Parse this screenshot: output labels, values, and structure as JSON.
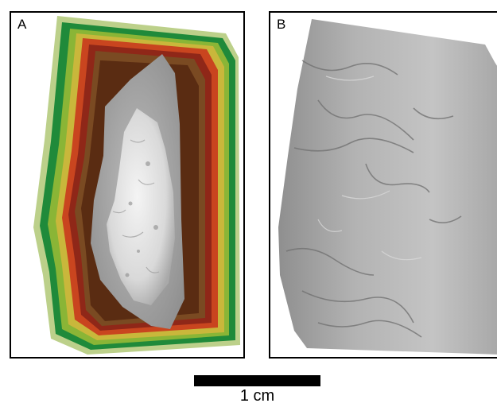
{
  "figure": {
    "panels": [
      {
        "label": "A",
        "description_icon": "fossil-scan-heightmap-image"
      },
      {
        "label": "B",
        "description_icon": "fossil-scan-gray-render-image"
      }
    ],
    "scale_bar": {
      "label": "1 cm"
    }
  }
}
